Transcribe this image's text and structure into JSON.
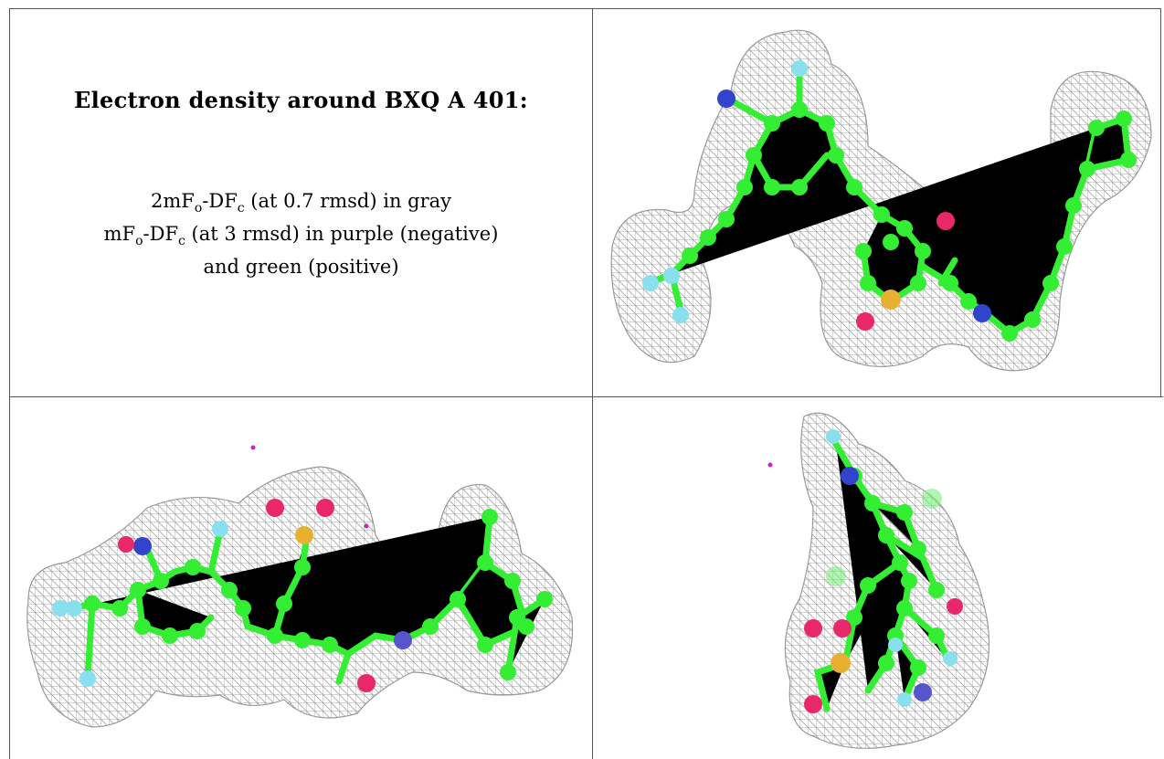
{
  "caption": {
    "title": "Electron density around BXQ A 401:",
    "line1": {
      "a": "2mF",
      "a_sub": "o",
      "b": "-DF",
      "b_sub": "c",
      "c": " (at 0.7 rmsd) in gray"
    },
    "line2": {
      "a": "mF",
      "a_sub": "o",
      "b": "-DF",
      "b_sub": "c",
      "c": " (at 3 rmsd) in purple (negative)"
    },
    "line3": "and green (positive)"
  },
  "colors": {
    "mesh": "#9a9a9a",
    "carbon": "#33ee33",
    "nitrogen": "#3344cc",
    "oxygen": "#e8286a",
    "fluorine": "#88e0ee",
    "sulfur": "#e8b030",
    "negative_density": "#cc22cc"
  },
  "views": [
    {
      "name": "view-top-right"
    },
    {
      "name": "view-bottom-left"
    },
    {
      "name": "view-bottom-right"
    }
  ]
}
